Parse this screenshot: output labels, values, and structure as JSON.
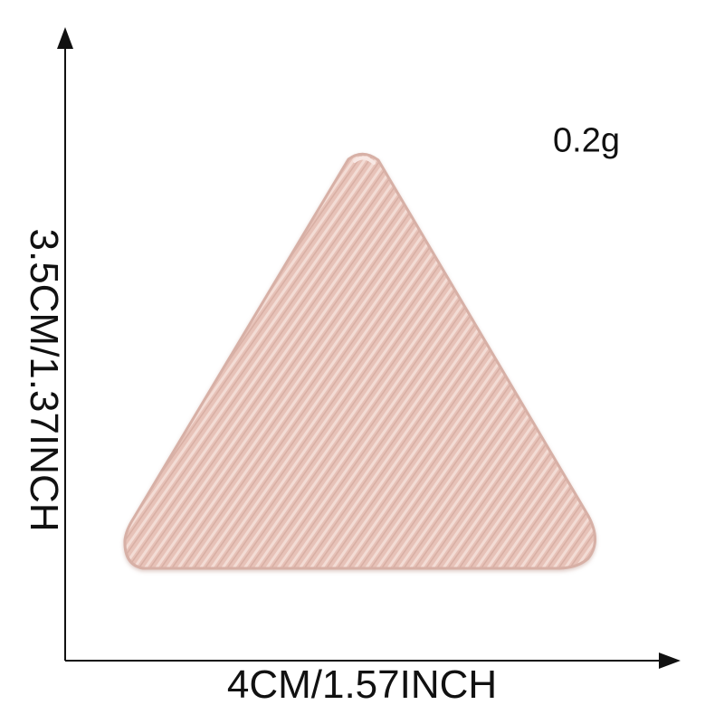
{
  "labels": {
    "height": "3.5CM/1.37INCH",
    "width": "4CM/1.57INCH",
    "weight": "0.2g"
  },
  "colors": {
    "background": "#ffffff",
    "axis": "#111111",
    "patch_fill": "#e7c2b8",
    "patch_stripe": "#f3dcd5",
    "patch_shadow": "#c99f93"
  },
  "product": {
    "shape": "triangle",
    "texture": "diagonal twill weave"
  }
}
